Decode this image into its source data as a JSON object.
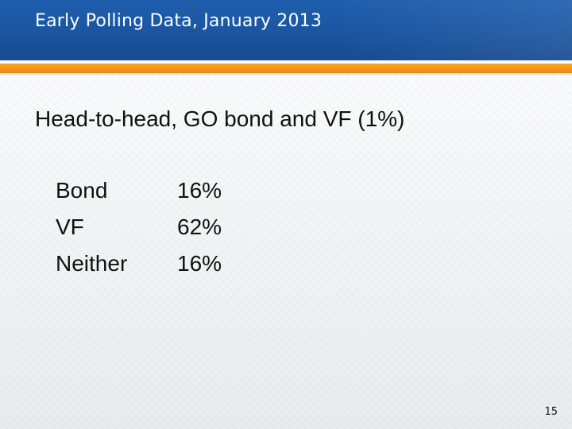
{
  "header": {
    "title": "Early Polling Data, January 2013"
  },
  "subtitle": "Head-to-head, GO bond and VF (1%)",
  "results": [
    {
      "label": "Bond",
      "value": "16%"
    },
    {
      "label": "VF",
      "value": "62%"
    },
    {
      "label": "Neither",
      "value": "16%"
    }
  ],
  "page_number": "15",
  "colors": {
    "header_blue": "#1b55a0",
    "accent_orange": "#f39418"
  }
}
